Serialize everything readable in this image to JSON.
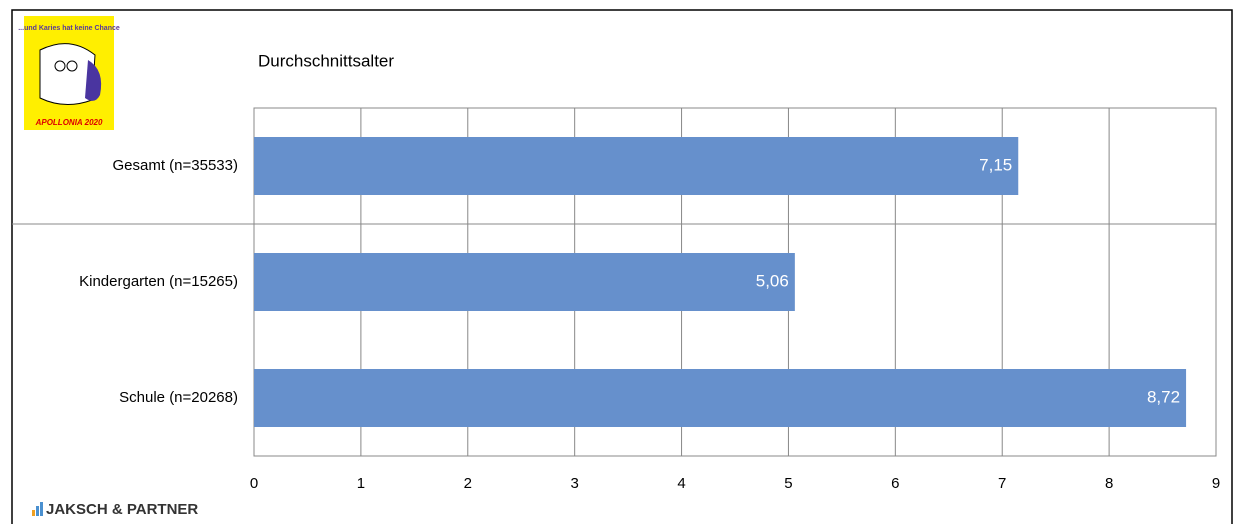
{
  "logo": {
    "slogan": "...und Karies hat keine Chance",
    "name": "APOLLONIA 2020"
  },
  "footer": {
    "brand": "JAKSCH & PARTNER"
  },
  "chart_data": {
    "type": "bar",
    "orientation": "horizontal",
    "title": "Durchschnittsalter",
    "categories": [
      "Gesamt (n=35533)",
      "Kindergarten (n=15265)",
      "Schule (n=20268)"
    ],
    "values": [
      7.15,
      5.06,
      8.72
    ],
    "value_labels": [
      "7,15",
      "5,06",
      "8,72"
    ],
    "color": "#6690cc",
    "xlim": [
      0,
      9
    ],
    "xticks": [
      0,
      1,
      2,
      3,
      4,
      5,
      6,
      7,
      8,
      9
    ],
    "grid": true
  }
}
